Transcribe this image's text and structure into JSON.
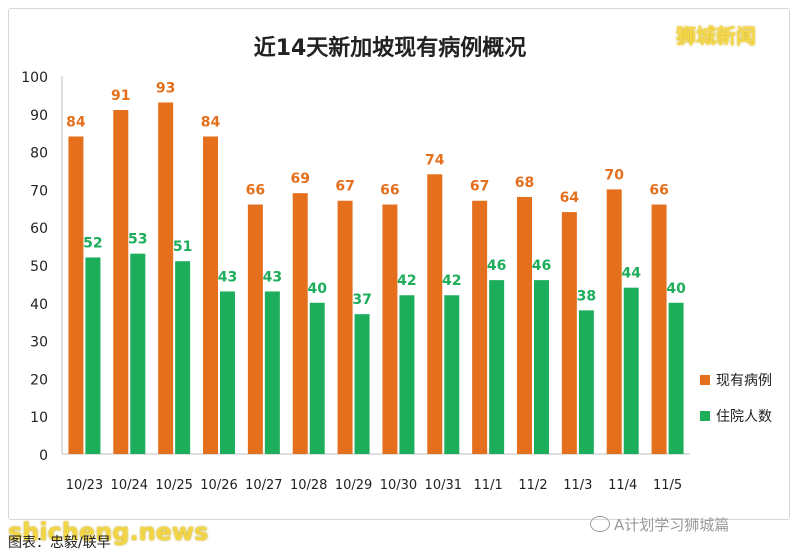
{
  "colors": {
    "current": "#E4701E",
    "hospital": "#1DAE5B",
    "axis_text": "#222222",
    "grid": "#d9d9d9",
    "watermark": "#f5d84a"
  },
  "watermarks": {
    "top_right": "狮城新闻",
    "bottom_left": "shicheng.news",
    "wechat": "A计划学习狮城篇",
    "wechat_icon": "wechat-icon"
  },
  "source_note": "图表：忠毅/联早",
  "chart_data": {
    "type": "bar",
    "title": "近14天新加坡现有病例概况",
    "xlabel": "",
    "ylabel": "",
    "categories": [
      "10/23",
      "10/24",
      "10/25",
      "10/26",
      "10/27",
      "10/28",
      "10/29",
      "10/30",
      "10/31",
      "11/1",
      "11/2",
      "11/3",
      "11/4",
      "11/5"
    ],
    "series": [
      {
        "name": "现有病例",
        "color": "#E4701E",
        "values": [
          84,
          91,
          93,
          84,
          66,
          69,
          67,
          66,
          74,
          67,
          68,
          64,
          70,
          66
        ]
      },
      {
        "name": "住院人数",
        "color": "#1DAE5B",
        "values": [
          52,
          53,
          51,
          43,
          43,
          40,
          37,
          42,
          42,
          46,
          46,
          38,
          44,
          40
        ]
      }
    ],
    "ylim": [
      0,
      100
    ],
    "yticks": [
      0,
      10,
      20,
      30,
      40,
      50,
      60,
      70,
      80,
      90,
      100
    ],
    "grid": false,
    "data_labels": true,
    "legend_position": "right"
  }
}
